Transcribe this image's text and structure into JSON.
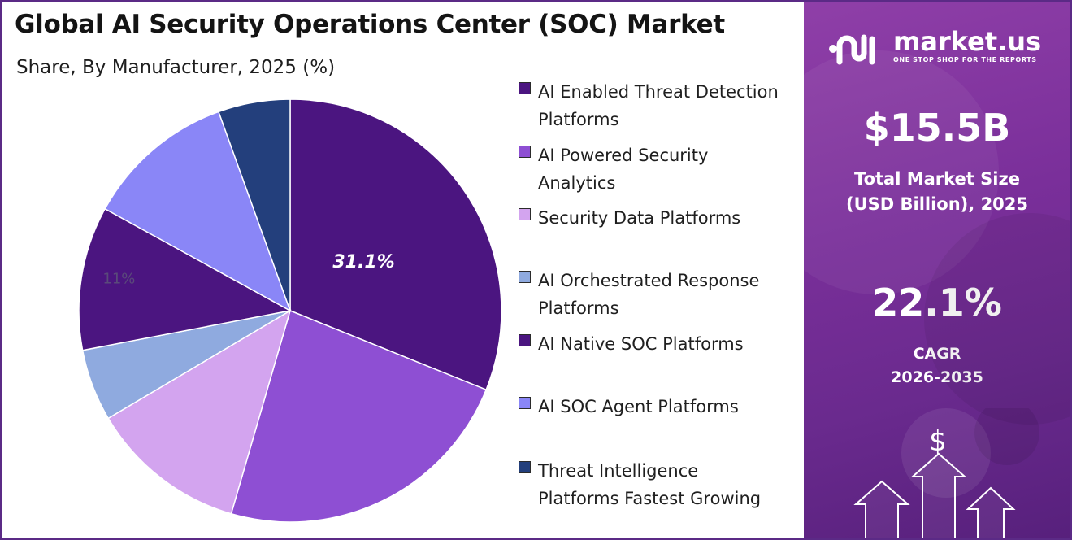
{
  "header": {
    "title": "Global AI Security Operations Center (SOC) Market",
    "subtitle": "Share, By Manufacturer, 2025 (%)"
  },
  "chart_data": {
    "type": "pie",
    "title": "Global AI Security Operations Center (SOC) Market",
    "subtitle": "Share, By Manufacturer, 2025 (%)",
    "start_angle_deg": 0,
    "direction": "clockwise",
    "legend_position": "right",
    "slices": [
      {
        "name": "AI Enabled Threat Detection Platforms",
        "value": 31.1,
        "label": "31.1%",
        "color": "#4b1580"
      },
      {
        "name": "AI Powered Security Analytics",
        "value": 23.4,
        "color": "#8e4fd3"
      },
      {
        "name": "Security Data Platforms",
        "value": 12.0,
        "color": "#d3a4ef"
      },
      {
        "name": "AI Orchestrated Response Platforms",
        "value": 5.5,
        "color": "#8faadf"
      },
      {
        "name": "AI Native SOC Platforms",
        "value": 11.0,
        "label": "11%",
        "color": "#4b1580"
      },
      {
        "name": "AI SOC Agent Platforms",
        "value": 11.5,
        "color": "#8a86f7"
      },
      {
        "name": "Threat Intelligence Platforms Fastest Growing",
        "value": 5.5,
        "color": "#233f7c"
      }
    ]
  },
  "legend": {
    "items": [
      {
        "line1": "AI Enabled Threat Detection",
        "line2": "Platforms",
        "color": "#4b1580"
      },
      {
        "line1": "AI Powered Security",
        "line2": "Analytics",
        "color": "#8e4fd3"
      },
      {
        "line1": "Security Data Platforms",
        "line2": "",
        "color": "#d3a4ef"
      },
      {
        "line1": "AI Orchestrated Response",
        "line2": "Platforms",
        "color": "#8faadf"
      },
      {
        "line1": "AI Native SOC Platforms",
        "line2": "",
        "color": "#4b1580"
      },
      {
        "line1": "AI SOC Agent Platforms",
        "line2": "",
        "color": "#8a86f7"
      },
      {
        "line1": "Threat Intelligence",
        "line2": "Platforms Fastest Growing",
        "color": "#233f7c"
      }
    ]
  },
  "sidebar": {
    "brand": "market.us",
    "tagline": "ONE STOP SHOP FOR THE REPORTS",
    "market_size_value": "$15.5B",
    "market_size_label_1": "Total Market Size",
    "market_size_label_2": "(USD Billion), 2025",
    "cagr_value": "22.1%",
    "cagr_label": "CAGR",
    "cagr_period": "2026-2035",
    "dollar_symbol": "$"
  }
}
